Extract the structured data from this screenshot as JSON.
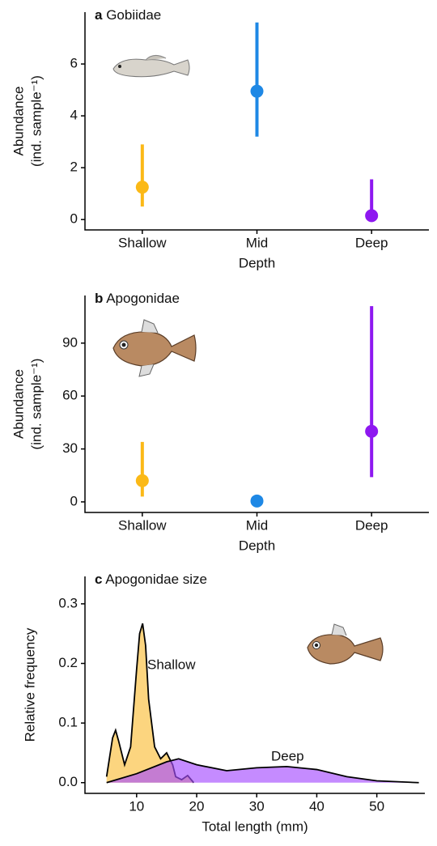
{
  "chart_data": [
    {
      "type": "pointrange",
      "panel": "a",
      "title": "Gobiidae",
      "xlabel": "Depth",
      "ylabel": [
        "Abundance",
        "(ind. sample⁻¹)"
      ],
      "categories": [
        "Shallow",
        "Mid",
        "Deep"
      ],
      "values": [
        1.25,
        4.95,
        0.15
      ],
      "lower": [
        0.5,
        3.2,
        0
      ],
      "upper": [
        2.9,
        7.6,
        1.55
      ],
      "colors": [
        "#fbb917",
        "#1e88e5",
        "#8e18f0"
      ],
      "ylim": [
        -0.4,
        8.0
      ],
      "yticks": [
        0,
        2,
        4,
        6
      ]
    },
    {
      "type": "pointrange",
      "panel": "b",
      "title": "Apogonidae",
      "xlabel": "Depth",
      "ylabel": [
        "Abundance",
        "(ind. sample⁻¹)"
      ],
      "categories": [
        "Shallow",
        "Mid",
        "Deep"
      ],
      "values": [
        12,
        0.5,
        40
      ],
      "lower": [
        3,
        0.5,
        14
      ],
      "upper": [
        34,
        0.5,
        111
      ],
      "colors": [
        "#fbb917",
        "#1e88e5",
        "#8e18f0"
      ],
      "ylim": [
        -6,
        117
      ],
      "yticks": [
        0,
        30,
        60,
        90
      ]
    },
    {
      "type": "density",
      "panel": "c",
      "title": "Apogonidae size",
      "xlabel": "Total length (mm)",
      "ylabel": [
        "Relative frequency"
      ],
      "series": [
        {
          "name": "Shallow",
          "color": "#fbbf3a",
          "x": [
            5,
            6,
            6.5,
            7,
            8,
            9,
            10,
            10.5,
            11,
            11.5,
            12,
            13,
            14,
            15,
            16,
            16.5,
            17.5,
            18.5,
            19.5
          ],
          "values": [
            0.01,
            0.075,
            0.088,
            0.07,
            0.03,
            0.06,
            0.19,
            0.25,
            0.267,
            0.23,
            0.14,
            0.06,
            0.04,
            0.05,
            0.03,
            0.01,
            0.005,
            0.012,
            0
          ]
        },
        {
          "name": "Deep",
          "color": "#a64dff",
          "x": [
            5,
            10,
            15,
            17,
            20,
            25,
            30,
            35,
            40,
            45,
            50,
            57
          ],
          "values": [
            0,
            0.015,
            0.035,
            0.04,
            0.03,
            0.02,
            0.025,
            0.027,
            0.022,
            0.01,
            0.003,
            0
          ]
        }
      ],
      "xlim": [
        1.4,
        58
      ],
      "xticks": [
        10,
        20,
        30,
        40,
        50
      ],
      "ylim": [
        -0.018,
        0.346
      ],
      "yticks": [
        0.0,
        0.1,
        0.2,
        0.3
      ]
    }
  ]
}
